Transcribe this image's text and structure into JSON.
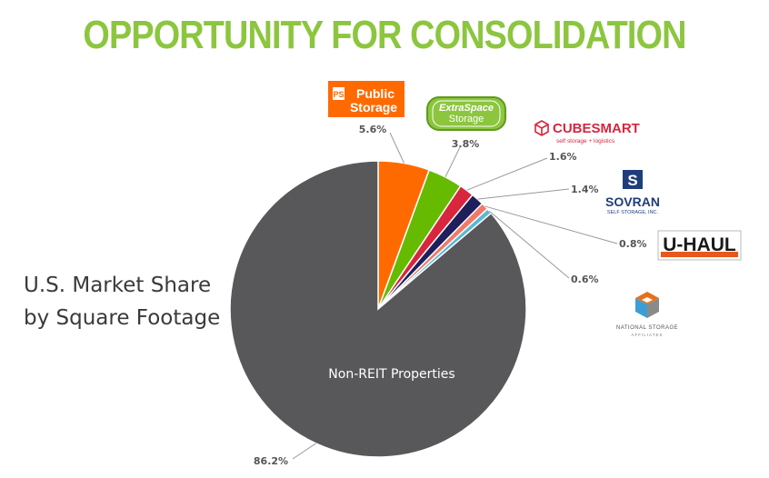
{
  "page": {
    "title": "OPPORTUNITY FOR CONSOLIDATION",
    "subtitle_lines": [
      "U.S. Market Share",
      "by Square Footage"
    ]
  },
  "brands": {
    "public_storage": {
      "badge": "PS",
      "line1": "Public",
      "line2": "Storage"
    },
    "extra_space": {
      "line1": "ExtraSpace",
      "line2": "Storage"
    },
    "cubesmart": {
      "name": "CUBESMART",
      "tagline": "self storage + logistics"
    },
    "sovran": {
      "name": "SOVRAN",
      "tagline": "SELF STORAGE, INC."
    },
    "uhaul": {
      "name": "U-HAUL"
    },
    "nsa": {
      "line1": "NATIONAL STORAGE",
      "line2": "AFFILIATES"
    }
  },
  "chart_data": {
    "type": "pie",
    "title": "",
    "slices": [
      {
        "key": "public_storage",
        "value": 5.6,
        "label": "5.6%",
        "color": "#ff6a00"
      },
      {
        "key": "extra_space",
        "value": 3.8,
        "label": "3.8%",
        "color": "#66bb00"
      },
      {
        "key": "cubesmart",
        "value": 1.6,
        "label": "1.6%",
        "color": "#d7263d"
      },
      {
        "key": "sovran",
        "value": 1.4,
        "label": "1.4%",
        "color": "#1f1f5c"
      },
      {
        "key": "uhaul",
        "value": 0.8,
        "label": "0.8%",
        "color": "#f07a6a"
      },
      {
        "key": "nsa",
        "value": 0.6,
        "label": "0.6%",
        "color": "#5bb8d4"
      },
      {
        "key": "non_reit",
        "value": 86.2,
        "label": "86.2%",
        "color": "#58585a",
        "inner_label": "Non-REIT Properties"
      }
    ],
    "start_angle": "12 o'clock",
    "direction": "clockwise"
  },
  "colors": {
    "title": "#8cc63f",
    "public_storage": "#ff6a00",
    "extra_space": "#8cc63f",
    "cubesmart": "#d7263d",
    "sovran": "#1f3d7a",
    "uhaul": "#e8571d",
    "nsa": "#6a6a6a"
  }
}
